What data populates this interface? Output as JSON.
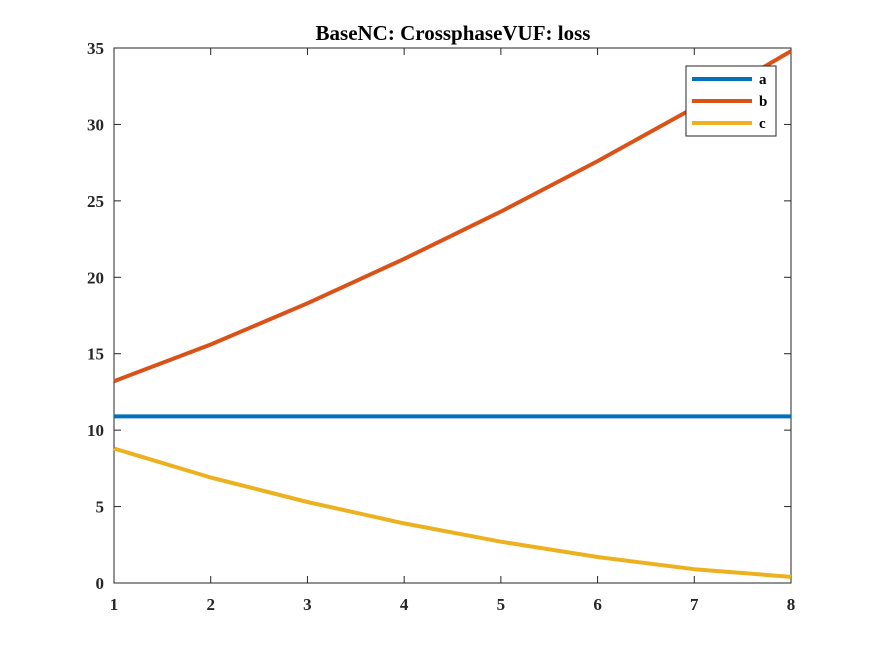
{
  "chart_data": {
    "type": "line",
    "title": "BaseNC: CrossphaseVUF: loss",
    "xlabel": "",
    "ylabel": "",
    "x": [
      1,
      2,
      3,
      4,
      5,
      6,
      7,
      8
    ],
    "xlim": [
      1,
      8
    ],
    "ylim": [
      0,
      35
    ],
    "xticks": [
      1,
      2,
      3,
      4,
      5,
      6,
      7,
      8
    ],
    "yticks": [
      0,
      5,
      10,
      15,
      20,
      25,
      30,
      35
    ],
    "grid": false,
    "legend_position": "top-right",
    "series": [
      {
        "name": "a",
        "color": "#0072BD",
        "values": [
          10.9,
          10.9,
          10.9,
          10.9,
          10.9,
          10.9,
          10.9,
          10.9
        ]
      },
      {
        "name": "b",
        "color": "#D95319",
        "values": [
          13.2,
          15.6,
          18.3,
          21.2,
          24.3,
          27.6,
          31.1,
          34.8
        ]
      },
      {
        "name": "c",
        "color": "#EDB120",
        "values": [
          8.8,
          6.9,
          5.3,
          3.9,
          2.7,
          1.7,
          0.9,
          0.4
        ]
      }
    ]
  }
}
